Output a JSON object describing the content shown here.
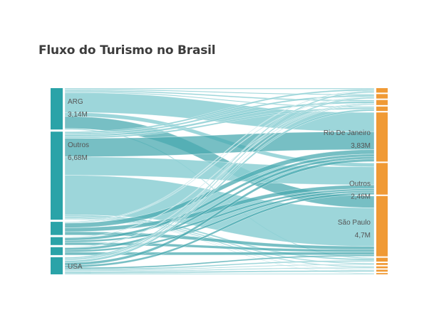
{
  "chart_data": {
    "type": "sankey",
    "title": "Fluxo do Turismo no Brasil",
    "units": "M",
    "colors": {
      "source_node": "#2aa3a8",
      "target_node": "#f09a35",
      "link": "#8ccfd3",
      "link_highlight": "#49a9b0",
      "label": "#555555"
    },
    "sources": [
      {
        "id": "arg",
        "name": "ARG",
        "value_label": "3,14M",
        "value": 3.14
      },
      {
        "id": "outros",
        "name": "Outros",
        "value_label": "6,68M",
        "value": 6.68
      },
      {
        "id": "s3",
        "name": "",
        "value_label": "",
        "value": 1.0
      },
      {
        "id": "s4",
        "name": "",
        "value_label": "",
        "value": 0.6
      },
      {
        "id": "s5",
        "name": "",
        "value_label": "",
        "value": 0.6
      },
      {
        "id": "usa",
        "name": "USA",
        "value_label": "",
        "value": 1.3
      }
    ],
    "targets": [
      {
        "id": "t1",
        "name": "",
        "value_label": "",
        "value": 0.35
      },
      {
        "id": "t2",
        "name": "",
        "value_label": "",
        "value": 0.35
      },
      {
        "id": "t3",
        "name": "",
        "value_label": "",
        "value": 0.4
      },
      {
        "id": "t4",
        "name": "",
        "value_label": "",
        "value": 0.35
      },
      {
        "id": "rio",
        "name": "Rio De Janeiro",
        "value_label": "3,83M",
        "value": 3.83
      },
      {
        "id": "outros_d",
        "name": "Outros",
        "value_label": "2,46M",
        "value": 2.46
      },
      {
        "id": "sp",
        "name": "São Paulo",
        "value_label": "4,7M",
        "value": 4.7
      },
      {
        "id": "t8",
        "name": "",
        "value_label": "",
        "value": 0.3
      },
      {
        "id": "t9",
        "name": "",
        "value_label": "",
        "value": 0.15
      },
      {
        "id": "t10",
        "name": "",
        "value_label": "",
        "value": 0.15
      },
      {
        "id": "t11",
        "name": "",
        "value_label": "",
        "value": 0.15
      },
      {
        "id": "t12",
        "name": "",
        "value_label": "",
        "value": 0.1
      }
    ],
    "links": [
      {
        "source": "arg",
        "target": "t1",
        "value": 0.08
      },
      {
        "source": "arg",
        "target": "t2",
        "value": 0.08
      },
      {
        "source": "arg",
        "target": "t3",
        "value": 0.1
      },
      {
        "source": "arg",
        "target": "t4",
        "value": 0.08
      },
      {
        "source": "arg",
        "target": "rio",
        "value": 1.5
      },
      {
        "source": "arg",
        "target": "outros_d",
        "value": 0.3
      },
      {
        "source": "arg",
        "target": "sp",
        "value": 0.92
      },
      {
        "source": "arg",
        "target": "t8",
        "value": 0.08
      },
      {
        "source": "outros",
        "target": "t1",
        "value": 0.12
      },
      {
        "source": "outros",
        "target": "t2",
        "value": 0.12
      },
      {
        "source": "outros",
        "target": "t3",
        "value": 0.15
      },
      {
        "source": "outros",
        "target": "t4",
        "value": 0.12
      },
      {
        "source": "outros",
        "target": "rio",
        "value": 1.4
      },
      {
        "source": "outros",
        "target": "outros_d",
        "value": 1.4
      },
      {
        "source": "outros",
        "target": "sp",
        "value": 3.0
      },
      {
        "source": "outros",
        "target": "t8",
        "value": 0.12
      },
      {
        "source": "outros",
        "target": "t9",
        "value": 0.09
      },
      {
        "source": "outros",
        "target": "t10",
        "value": 0.08
      },
      {
        "source": "outros",
        "target": "t11",
        "value": 0.04
      },
      {
        "source": "outros",
        "target": "t12",
        "value": 0.04
      },
      {
        "source": "s3",
        "target": "t1",
        "value": 0.05
      },
      {
        "source": "s3",
        "target": "t2",
        "value": 0.05
      },
      {
        "source": "s3",
        "target": "rio",
        "value": 0.35
      },
      {
        "source": "s3",
        "target": "outros_d",
        "value": 0.3
      },
      {
        "source": "s3",
        "target": "sp",
        "value": 0.25
      },
      {
        "source": "s4",
        "target": "t3",
        "value": 0.05
      },
      {
        "source": "s4",
        "target": "rio",
        "value": 0.2
      },
      {
        "source": "s4",
        "target": "outros_d",
        "value": 0.15
      },
      {
        "source": "s4",
        "target": "sp",
        "value": 0.2
      },
      {
        "source": "s5",
        "target": "t3",
        "value": 0.05
      },
      {
        "source": "s5",
        "target": "rio",
        "value": 0.18
      },
      {
        "source": "s5",
        "target": "outros_d",
        "value": 0.15
      },
      {
        "source": "s5",
        "target": "sp",
        "value": 0.22
      },
      {
        "source": "usa",
        "target": "t1",
        "value": 0.1
      },
      {
        "source": "usa",
        "target": "t2",
        "value": 0.1
      },
      {
        "source": "usa",
        "target": "t3",
        "value": 0.05
      },
      {
        "source": "usa",
        "target": "t4",
        "value": 0.15
      },
      {
        "source": "usa",
        "target": "rio",
        "value": 0.2
      },
      {
        "source": "usa",
        "target": "outros_d",
        "value": 0.16
      },
      {
        "source": "usa",
        "target": "sp",
        "value": 0.11
      },
      {
        "source": "usa",
        "target": "t8",
        "value": 0.1
      },
      {
        "source": "usa",
        "target": "t9",
        "value": 0.06
      },
      {
        "source": "usa",
        "target": "t10",
        "value": 0.07
      },
      {
        "source": "usa",
        "target": "t11",
        "value": 0.11
      },
      {
        "source": "usa",
        "target": "t12",
        "value": 0.06
      }
    ]
  }
}
